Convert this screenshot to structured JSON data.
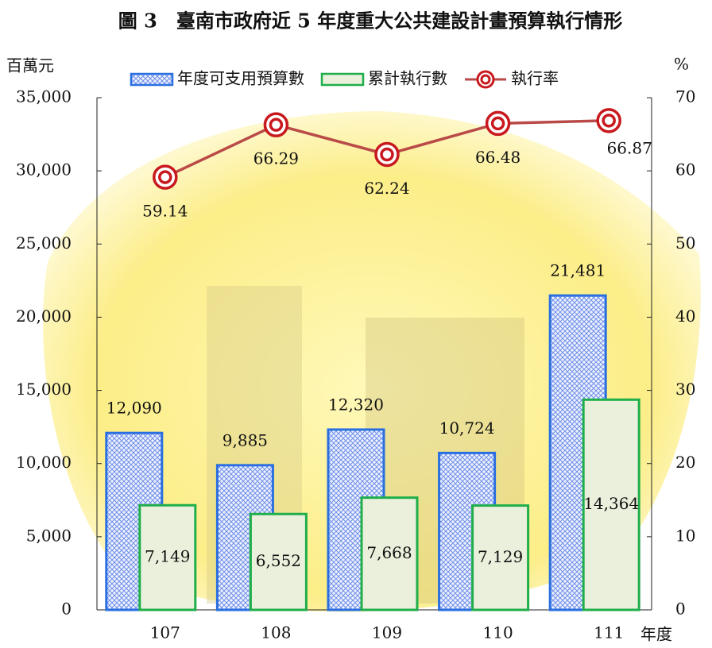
{
  "chart_data": {
    "type": "bar-line",
    "title": "圖 3　臺南市政府近 5 年度重大公共建設計畫預算執行情形",
    "y_label": "百萬元",
    "y2_label": "%",
    "x_label": "年度",
    "categories": [
      "107",
      "108",
      "109",
      "110",
      "111"
    ],
    "series": [
      {
        "name": "年度可支用預算數",
        "type": "bar",
        "color": "#2a6fe0",
        "values": [
          12090,
          9885,
          12320,
          10724,
          21481
        ],
        "value_labels": [
          "12,090",
          "9,885",
          "12,320",
          "10,724",
          "21,481"
        ]
      },
      {
        "name": "累計執行數",
        "type": "bar",
        "color": "#1fae4a",
        "values": [
          7149,
          6552,
          7668,
          7129,
          14364
        ],
        "value_labels": [
          "7,149",
          "6,552",
          "7,668",
          "7,129",
          "14,364"
        ]
      },
      {
        "name": "執行率",
        "type": "line",
        "axis": "y2",
        "color": "#b94a48",
        "values": [
          59.14,
          66.29,
          62.24,
          66.48,
          66.87
        ]
      }
    ],
    "ylim": [
      0,
      35000
    ],
    "yticks": [
      0,
      {
        "value": 5000,
        "label": "5,000"
      },
      {
        "value": 10000,
        "label": "10,000"
      },
      {
        "value": 15000,
        "label": "15,000"
      },
      {
        "value": 20000,
        "label": "20,000"
      },
      {
        "value": 25000,
        "label": "25,000"
      },
      {
        "value": 30000,
        "label": "30,000"
      },
      {
        "value": 35000,
        "label": "35,000"
      }
    ],
    "y2lim": [
      0,
      70
    ],
    "y2ticks": [
      0,
      10,
      20,
      30,
      40,
      50,
      60,
      70
    ]
  }
}
